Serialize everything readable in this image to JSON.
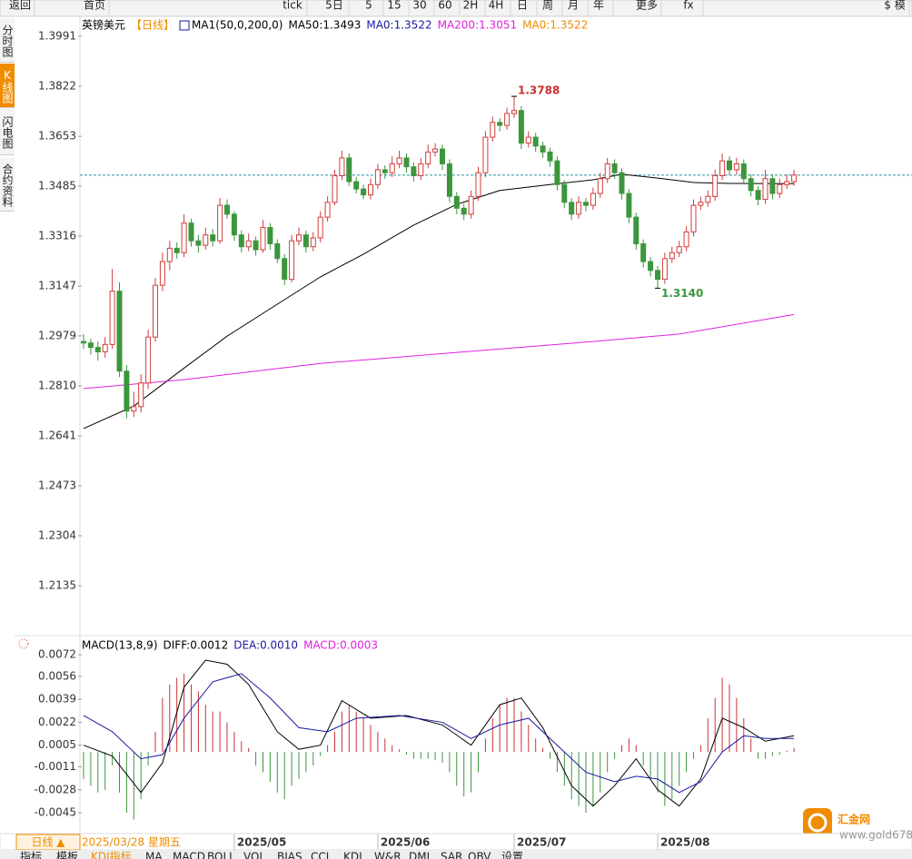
{
  "toolbar": [
    "返回",
    "首页",
    "tick",
    "5日",
    "5",
    "15",
    "30",
    "60",
    "2H",
    "4H",
    "日",
    "周",
    "月",
    "年",
    "更多",
    "fx",
    "$ 模"
  ],
  "side_tabs": [
    "分时图",
    "K线图",
    "闪电图",
    "合约资料"
  ],
  "bottom_bar": {
    "period": "日线 ▲",
    "cursor_date": "2025/03/28 星期五"
  },
  "bottom_tabs": [
    "指标",
    "模板",
    "KDJ指标",
    "MA",
    "MACD",
    "BOLL",
    "VOL",
    "BIAS",
    "CCI",
    "KDJ",
    "W&R",
    "DMI",
    "SAR",
    "OBV",
    "设置"
  ],
  "watermark": {
    "name": "汇金网",
    "url": "www.gold678.com"
  },
  "chart_data": [
    {
      "type": "candlestick",
      "title": "英镑美元",
      "period": "【日线】",
      "indicator": "MA1(50,0,200,0)",
      "up_color": "#d23c3c",
      "down_color": "#3c963c",
      "ylim": [
        1.1982,
        1.4052
      ],
      "yticks": [
        {
          "value": 1.3991,
          "label": "1.3991"
        },
        {
          "value": 1.3822,
          "label": "1.3822"
        },
        {
          "value": 1.3653,
          "label": "1.3653"
        },
        {
          "value": 1.3485,
          "label": "1.3485"
        },
        {
          "value": 1.3316,
          "label": "1.3316"
        },
        {
          "value": 1.3147,
          "label": "1.3147"
        },
        {
          "value": 1.2979,
          "label": "1.2979"
        },
        {
          "value": 1.281,
          "label": "1.2810"
        },
        {
          "value": 1.2641,
          "label": "1.2641"
        },
        {
          "value": 1.2473,
          "label": "1.2473"
        },
        {
          "value": 1.2304,
          "label": "1.2304"
        },
        {
          "value": 1.2135,
          "label": "1.2135"
        }
      ],
      "xticks": [
        {
          "value": 21,
          "label": "2025/05"
        },
        {
          "value": 41,
          "label": "2025/06"
        },
        {
          "value": 60,
          "label": "2025/07"
        },
        {
          "value": 80,
          "label": "2025/08"
        }
      ],
      "last_price": 1.3522,
      "annotations": [
        {
          "value": 1.3788,
          "label": "1.3788",
          "color": "#c83232"
        },
        {
          "value": 1.314,
          "label": "1.3140",
          "color": "#3c963c"
        }
      ],
      "candles": [
        [
          1.296,
          1.2985,
          1.2935,
          1.2955
        ],
        [
          1.2955,
          1.297,
          1.2915,
          1.294
        ],
        [
          1.294,
          1.296,
          1.2895,
          1.2925
        ],
        [
          1.2925,
          1.2975,
          1.2905,
          1.295
        ],
        [
          1.295,
          1.3205,
          1.2935,
          1.313
        ],
        [
          1.313,
          1.316,
          1.284,
          1.286
        ],
        [
          1.286,
          1.288,
          1.27,
          1.2725
        ],
        [
          1.2725,
          1.279,
          1.2705,
          1.274
        ],
        [
          1.274,
          1.285,
          1.272,
          1.282
        ],
        [
          1.282,
          1.3,
          1.28,
          1.2975
        ],
        [
          1.2975,
          1.3175,
          1.296,
          1.315
        ],
        [
          1.315,
          1.326,
          1.313,
          1.323
        ],
        [
          1.323,
          1.33,
          1.32,
          1.3275
        ],
        [
          1.3275,
          1.3295,
          1.324,
          1.326
        ],
        [
          1.326,
          1.339,
          1.3245,
          1.336
        ],
        [
          1.336,
          1.3375,
          1.328,
          1.33
        ],
        [
          1.33,
          1.332,
          1.326,
          1.3285
        ],
        [
          1.3285,
          1.3345,
          1.327,
          1.332
        ],
        [
          1.332,
          1.334,
          1.328,
          1.33
        ],
        [
          1.33,
          1.3445,
          1.329,
          1.342
        ],
        [
          1.342,
          1.344,
          1.3375,
          1.339
        ],
        [
          1.339,
          1.34,
          1.33,
          1.332
        ],
        [
          1.332,
          1.3335,
          1.326,
          1.328
        ],
        [
          1.328,
          1.3325,
          1.3265,
          1.33
        ],
        [
          1.33,
          1.3315,
          1.325,
          1.327
        ],
        [
          1.327,
          1.337,
          1.326,
          1.3345
        ],
        [
          1.3345,
          1.336,
          1.327,
          1.329
        ],
        [
          1.329,
          1.3305,
          1.3225,
          1.324
        ],
        [
          1.324,
          1.3255,
          1.315,
          1.317
        ],
        [
          1.317,
          1.332,
          1.316,
          1.33
        ],
        [
          1.33,
          1.3345,
          1.3285,
          1.332
        ],
        [
          1.332,
          1.3335,
          1.326,
          1.328
        ],
        [
          1.328,
          1.333,
          1.3265,
          1.331
        ],
        [
          1.331,
          1.34,
          1.3295,
          1.338
        ],
        [
          1.338,
          1.345,
          1.3365,
          1.343
        ],
        [
          1.343,
          1.354,
          1.342,
          1.352
        ],
        [
          1.352,
          1.3605,
          1.3505,
          1.358
        ],
        [
          1.358,
          1.3595,
          1.3485,
          1.35
        ],
        [
          1.35,
          1.3515,
          1.346,
          1.3475
        ],
        [
          1.3475,
          1.349,
          1.344,
          1.3455
        ],
        [
          1.3455,
          1.351,
          1.344,
          1.349
        ],
        [
          1.349,
          1.356,
          1.3475,
          1.354
        ],
        [
          1.354,
          1.3555,
          1.351,
          1.353
        ],
        [
          1.353,
          1.3585,
          1.3515,
          1.356
        ],
        [
          1.356,
          1.3605,
          1.3545,
          1.358
        ],
        [
          1.358,
          1.3595,
          1.353,
          1.355
        ],
        [
          1.355,
          1.3565,
          1.35,
          1.352
        ],
        [
          1.352,
          1.358,
          1.3505,
          1.356
        ],
        [
          1.356,
          1.3625,
          1.3545,
          1.36
        ],
        [
          1.36,
          1.363,
          1.3585,
          1.361
        ],
        [
          1.361,
          1.3625,
          1.354,
          1.356
        ],
        [
          1.356,
          1.3575,
          1.343,
          1.345
        ],
        [
          1.345,
          1.3465,
          1.339,
          1.341
        ],
        [
          1.341,
          1.3425,
          1.337,
          1.339
        ],
        [
          1.339,
          1.347,
          1.3375,
          1.345
        ],
        [
          1.345,
          1.355,
          1.3435,
          1.353
        ],
        [
          1.353,
          1.367,
          1.3515,
          1.365
        ],
        [
          1.365,
          1.372,
          1.3635,
          1.37
        ],
        [
          1.37,
          1.3715,
          1.367,
          1.369
        ],
        [
          1.369,
          1.375,
          1.3675,
          1.373
        ],
        [
          1.373,
          1.3788,
          1.3715,
          1.374
        ],
        [
          1.374,
          1.3755,
          1.361,
          1.363
        ],
        [
          1.363,
          1.367,
          1.3615,
          1.365
        ],
        [
          1.365,
          1.3665,
          1.36,
          1.362
        ],
        [
          1.362,
          1.3635,
          1.358,
          1.36
        ],
        [
          1.36,
          1.3615,
          1.355,
          1.357
        ],
        [
          1.357,
          1.3585,
          1.347,
          1.349
        ],
        [
          1.349,
          1.3505,
          1.341,
          1.343
        ],
        [
          1.343,
          1.3445,
          1.337,
          1.339
        ],
        [
          1.339,
          1.345,
          1.3375,
          1.343
        ],
        [
          1.343,
          1.3445,
          1.34,
          1.342
        ],
        [
          1.342,
          1.348,
          1.3405,
          1.346
        ],
        [
          1.346,
          1.353,
          1.3445,
          1.351
        ],
        [
          1.351,
          1.358,
          1.3495,
          1.356
        ],
        [
          1.356,
          1.3575,
          1.351,
          1.353
        ],
        [
          1.353,
          1.3545,
          1.344,
          1.346
        ],
        [
          1.346,
          1.3475,
          1.336,
          1.338
        ],
        [
          1.338,
          1.3395,
          1.327,
          1.329
        ],
        [
          1.329,
          1.3305,
          1.321,
          1.323
        ],
        [
          1.323,
          1.3245,
          1.318,
          1.32
        ],
        [
          1.32,
          1.3215,
          1.314,
          1.317
        ],
        [
          1.317,
          1.326,
          1.3155,
          1.324
        ],
        [
          1.324,
          1.328,
          1.3225,
          1.326
        ],
        [
          1.326,
          1.33,
          1.3245,
          1.328
        ],
        [
          1.328,
          1.335,
          1.3265,
          1.333
        ],
        [
          1.333,
          1.344,
          1.3315,
          1.342
        ],
        [
          1.342,
          1.345,
          1.3405,
          1.343
        ],
        [
          1.343,
          1.347,
          1.3415,
          1.345
        ],
        [
          1.345,
          1.354,
          1.3435,
          1.352
        ],
        [
          1.352,
          1.3595,
          1.3505,
          1.357
        ],
        [
          1.357,
          1.3585,
          1.352,
          1.354
        ],
        [
          1.354,
          1.358,
          1.3525,
          1.356
        ],
        [
          1.356,
          1.3575,
          1.349,
          1.351
        ],
        [
          1.351,
          1.3525,
          1.345,
          1.347
        ],
        [
          1.347,
          1.3485,
          1.342,
          1.344
        ],
        [
          1.344,
          1.354,
          1.3425,
          1.351
        ],
        [
          1.351,
          1.3525,
          1.344,
          1.346
        ],
        [
          1.346,
          1.351,
          1.3445,
          1.349
        ],
        [
          1.349,
          1.3525,
          1.3475,
          1.35
        ],
        [
          1.35,
          1.354,
          1.3485,
          1.3522
        ]
      ],
      "series": [
        {
          "name": "MA50:1.3493",
          "color": "#000000",
          "x": [
            0,
            7,
            14,
            20,
            27,
            33,
            39,
            46,
            52,
            58,
            65,
            71,
            75,
            80,
            85,
            90,
            99
          ],
          "values": [
            1.2666,
            1.2742,
            1.287,
            1.2978,
            1.3086,
            1.3178,
            1.3255,
            1.3353,
            1.3423,
            1.347,
            1.349,
            1.3506,
            1.3525,
            1.3512,
            1.3497,
            1.3494,
            1.3493
          ]
        },
        {
          "name": "MA0:1.3522",
          "color": "#1a1aa0"
        },
        {
          "name": "MA200:1.3051",
          "color": "#e020e0",
          "x": [
            0,
            14,
            33,
            52,
            71,
            83,
            99
          ],
          "values": [
            1.2801,
            1.2831,
            1.2886,
            1.2923,
            1.296,
            1.2985,
            1.3051
          ]
        },
        {
          "name": "MA0:1.3522",
          "color": "#f08c00"
        }
      ]
    },
    {
      "type": "macd",
      "title": "MACD(13,8,9)",
      "ylim": [
        -0.00584,
        0.00828
      ],
      "yticks": [
        0.0072,
        0.0056,
        0.0039,
        0.0022,
        0.0005,
        -0.0011,
        -0.0028,
        -0.0045
      ],
      "histogram": {
        "name": "MACD:0.0003",
        "color": "#e020e0",
        "up_color": "#c83232",
        "down_color": "#3c963c",
        "values": [
          -0.002,
          -0.0025,
          -0.003,
          -0.0028,
          -0.001,
          -0.003,
          -0.0045,
          -0.005,
          -0.0035,
          -0.001,
          0.0015,
          0.004,
          0.005,
          0.0055,
          0.0058,
          0.005,
          0.0045,
          0.0035,
          0.003,
          0.003,
          0.0022,
          0.0015,
          0.0008,
          0.0003,
          -0.001,
          -0.0015,
          -0.0022,
          -0.003,
          -0.0035,
          -0.0025,
          -0.002,
          -0.0015,
          -0.001,
          -0.0003,
          0.0005,
          0.0015,
          0.003,
          0.0035,
          0.003,
          0.0025,
          0.002,
          0.0015,
          0.001,
          0.0005,
          0.0002,
          -0.0002,
          -0.0005,
          -0.0005,
          -0.0005,
          -0.0006,
          -0.0008,
          -0.0015,
          -0.0025,
          -0.0033,
          -0.003,
          -0.0015,
          0.001,
          0.0025,
          0.0035,
          0.004,
          0.004,
          0.003,
          0.002,
          0.001,
          0.0003,
          -0.0005,
          -0.0015,
          -0.0025,
          -0.0035,
          -0.004,
          -0.0045,
          -0.004,
          -0.003,
          -0.0015,
          -0.0005,
          0.0005,
          0.001,
          0.0005,
          -0.001,
          -0.002,
          -0.003,
          -0.004,
          -0.0035,
          -0.0025,
          -0.0015,
          -0.0005,
          0.0005,
          0.0025,
          0.004,
          0.0055,
          0.005,
          0.004,
          0.0025,
          0.001,
          -0.0005,
          -0.0005,
          -0.0003,
          -0.0002,
          0.0001,
          0.0003
        ]
      },
      "series": [
        {
          "name": "DIFF:0.0012",
          "color": "#000000",
          "x": [
            0,
            4,
            8,
            11,
            14,
            17,
            20,
            23,
            27,
            30,
            33,
            36,
            40,
            45,
            50,
            54,
            58,
            61,
            64,
            68,
            71,
            74,
            77,
            80,
            83,
            86,
            89,
            92,
            95,
            99
          ],
          "values": [
            0.0005,
            -0.0003,
            -0.003,
            -0.0008,
            0.0048,
            0.0068,
            0.0065,
            0.005,
            0.0015,
            0.0002,
            0.0005,
            0.0038,
            0.0025,
            0.0027,
            0.002,
            0.0005,
            0.0035,
            0.004,
            0.0018,
            -0.0025,
            -0.004,
            -0.0025,
            -0.0005,
            -0.0028,
            -0.004,
            -0.002,
            0.0025,
            0.0018,
            0.0008,
            0.0012
          ]
        },
        {
          "name": "DEA:0.0010",
          "color": "#1a1aa0",
          "x": [
            0,
            4,
            8,
            11,
            14,
            18,
            22,
            26,
            30,
            34,
            38,
            44,
            50,
            54,
            58,
            62,
            66,
            70,
            74,
            77,
            80,
            83,
            86,
            89,
            92,
            95,
            99
          ],
          "values": [
            0.0027,
            0.0015,
            -0.0005,
            -0.0002,
            0.0025,
            0.0052,
            0.0058,
            0.004,
            0.0018,
            0.0015,
            0.0025,
            0.0027,
            0.0022,
            0.001,
            0.002,
            0.0025,
            0.0005,
            -0.0015,
            -0.0022,
            -0.0018,
            -0.002,
            -0.003,
            -0.0022,
            0,
            0.0012,
            0.001,
            0.001
          ]
        }
      ]
    }
  ]
}
